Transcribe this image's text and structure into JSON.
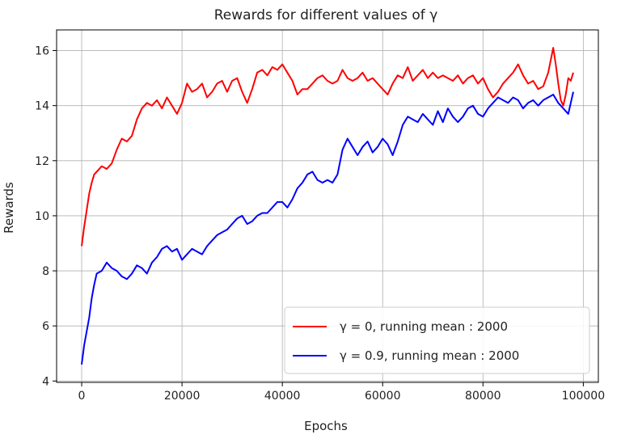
{
  "chart_data": {
    "type": "line",
    "title": "Rewards for different values of γ",
    "xlabel": "Epochs",
    "ylabel": "Rewards",
    "xlim": [
      -5000,
      103000
    ],
    "ylim": [
      3.95,
      16.75
    ],
    "xticks": [
      0,
      20000,
      40000,
      60000,
      80000,
      100000
    ],
    "yticks": [
      4,
      6,
      8,
      10,
      12,
      14,
      16
    ],
    "grid": true,
    "legend_position": "lower-right",
    "series": [
      {
        "name": "γ = 0, running mean : 2000",
        "color": "#ff0000",
        "points": [
          [
            0,
            8.9
          ],
          [
            500,
            9.6
          ],
          [
            1000,
            10.2
          ],
          [
            1500,
            10.8
          ],
          [
            2000,
            11.2
          ],
          [
            2500,
            11.5
          ],
          [
            3000,
            11.6
          ],
          [
            4000,
            11.8
          ],
          [
            5000,
            11.7
          ],
          [
            6000,
            11.9
          ],
          [
            7000,
            12.4
          ],
          [
            8000,
            12.8
          ],
          [
            9000,
            12.7
          ],
          [
            10000,
            12.9
          ],
          [
            11000,
            13.5
          ],
          [
            12000,
            13.9
          ],
          [
            13000,
            14.1
          ],
          [
            14000,
            14.0
          ],
          [
            15000,
            14.2
          ],
          [
            16000,
            13.9
          ],
          [
            17000,
            14.3
          ],
          [
            18000,
            14.0
          ],
          [
            19000,
            13.7
          ],
          [
            20000,
            14.1
          ],
          [
            21000,
            14.8
          ],
          [
            22000,
            14.5
          ],
          [
            23000,
            14.6
          ],
          [
            24000,
            14.8
          ],
          [
            25000,
            14.3
          ],
          [
            26000,
            14.5
          ],
          [
            27000,
            14.8
          ],
          [
            28000,
            14.9
          ],
          [
            29000,
            14.5
          ],
          [
            30000,
            14.9
          ],
          [
            31000,
            15.0
          ],
          [
            32000,
            14.5
          ],
          [
            33000,
            14.1
          ],
          [
            34000,
            14.6
          ],
          [
            35000,
            15.2
          ],
          [
            36000,
            15.3
          ],
          [
            37000,
            15.1
          ],
          [
            38000,
            15.4
          ],
          [
            39000,
            15.3
          ],
          [
            40000,
            15.5
          ],
          [
            41000,
            15.2
          ],
          [
            42000,
            14.9
          ],
          [
            43000,
            14.4
          ],
          [
            44000,
            14.6
          ],
          [
            45000,
            14.6
          ],
          [
            46000,
            14.8
          ],
          [
            47000,
            15.0
          ],
          [
            48000,
            15.1
          ],
          [
            49000,
            14.9
          ],
          [
            50000,
            14.8
          ],
          [
            51000,
            14.9
          ],
          [
            52000,
            15.3
          ],
          [
            53000,
            15.0
          ],
          [
            54000,
            14.9
          ],
          [
            55000,
            15.0
          ],
          [
            56000,
            15.2
          ],
          [
            57000,
            14.9
          ],
          [
            58000,
            15.0
          ],
          [
            59000,
            14.8
          ],
          [
            60000,
            14.6
          ],
          [
            61000,
            14.4
          ],
          [
            62000,
            14.8
          ],
          [
            63000,
            15.1
          ],
          [
            64000,
            15.0
          ],
          [
            65000,
            15.4
          ],
          [
            66000,
            14.9
          ],
          [
            67000,
            15.1
          ],
          [
            68000,
            15.3
          ],
          [
            69000,
            15.0
          ],
          [
            70000,
            15.2
          ],
          [
            71000,
            15.0
          ],
          [
            72000,
            15.1
          ],
          [
            73000,
            15.0
          ],
          [
            74000,
            14.9
          ],
          [
            75000,
            15.1
          ],
          [
            76000,
            14.8
          ],
          [
            77000,
            15.0
          ],
          [
            78000,
            15.1
          ],
          [
            79000,
            14.8
          ],
          [
            80000,
            15.0
          ],
          [
            81000,
            14.6
          ],
          [
            82000,
            14.3
          ],
          [
            83000,
            14.5
          ],
          [
            84000,
            14.8
          ],
          [
            85000,
            15.0
          ],
          [
            86000,
            15.2
          ],
          [
            87000,
            15.5
          ],
          [
            88000,
            15.1
          ],
          [
            89000,
            14.8
          ],
          [
            90000,
            14.9
          ],
          [
            91000,
            14.6
          ],
          [
            92000,
            14.7
          ],
          [
            93000,
            15.2
          ],
          [
            94000,
            16.1
          ],
          [
            94500,
            15.5
          ],
          [
            95000,
            14.8
          ],
          [
            95500,
            14.2
          ],
          [
            96000,
            14.0
          ],
          [
            96500,
            14.4
          ],
          [
            97000,
            15.0
          ],
          [
            97500,
            14.9
          ],
          [
            98000,
            15.2
          ]
        ]
      },
      {
        "name": "γ = 0.9, running mean : 2000",
        "color": "#0000ff",
        "points": [
          [
            0,
            4.6
          ],
          [
            500,
            5.3
          ],
          [
            1000,
            5.8
          ],
          [
            1500,
            6.3
          ],
          [
            2000,
            7.0
          ],
          [
            2500,
            7.5
          ],
          [
            3000,
            7.9
          ],
          [
            4000,
            8.0
          ],
          [
            5000,
            8.3
          ],
          [
            6000,
            8.1
          ],
          [
            7000,
            8.0
          ],
          [
            8000,
            7.8
          ],
          [
            9000,
            7.7
          ],
          [
            10000,
            7.9
          ],
          [
            11000,
            8.2
          ],
          [
            12000,
            8.1
          ],
          [
            13000,
            7.9
          ],
          [
            14000,
            8.3
          ],
          [
            15000,
            8.5
          ],
          [
            16000,
            8.8
          ],
          [
            17000,
            8.9
          ],
          [
            18000,
            8.7
          ],
          [
            19000,
            8.8
          ],
          [
            20000,
            8.4
          ],
          [
            21000,
            8.6
          ],
          [
            22000,
            8.8
          ],
          [
            23000,
            8.7
          ],
          [
            24000,
            8.6
          ],
          [
            25000,
            8.9
          ],
          [
            26000,
            9.1
          ],
          [
            27000,
            9.3
          ],
          [
            28000,
            9.4
          ],
          [
            29000,
            9.5
          ],
          [
            30000,
            9.7
          ],
          [
            31000,
            9.9
          ],
          [
            32000,
            10.0
          ],
          [
            33000,
            9.7
          ],
          [
            34000,
            9.8
          ],
          [
            35000,
            10.0
          ],
          [
            36000,
            10.1
          ],
          [
            37000,
            10.1
          ],
          [
            38000,
            10.3
          ],
          [
            39000,
            10.5
          ],
          [
            40000,
            10.5
          ],
          [
            41000,
            10.3
          ],
          [
            42000,
            10.6
          ],
          [
            43000,
            11.0
          ],
          [
            44000,
            11.2
          ],
          [
            45000,
            11.5
          ],
          [
            46000,
            11.6
          ],
          [
            47000,
            11.3
          ],
          [
            48000,
            11.2
          ],
          [
            49000,
            11.3
          ],
          [
            50000,
            11.2
          ],
          [
            51000,
            11.5
          ],
          [
            52000,
            12.4
          ],
          [
            53000,
            12.8
          ],
          [
            54000,
            12.5
          ],
          [
            55000,
            12.2
          ],
          [
            56000,
            12.5
          ],
          [
            57000,
            12.7
          ],
          [
            58000,
            12.3
          ],
          [
            59000,
            12.5
          ],
          [
            60000,
            12.8
          ],
          [
            61000,
            12.6
          ],
          [
            62000,
            12.2
          ],
          [
            63000,
            12.7
          ],
          [
            64000,
            13.3
          ],
          [
            65000,
            13.6
          ],
          [
            66000,
            13.5
          ],
          [
            67000,
            13.4
          ],
          [
            68000,
            13.7
          ],
          [
            69000,
            13.5
          ],
          [
            70000,
            13.3
          ],
          [
            71000,
            13.8
          ],
          [
            72000,
            13.4
          ],
          [
            73000,
            13.9
          ],
          [
            74000,
            13.6
          ],
          [
            75000,
            13.4
          ],
          [
            76000,
            13.6
          ],
          [
            77000,
            13.9
          ],
          [
            78000,
            14.0
          ],
          [
            79000,
            13.7
          ],
          [
            80000,
            13.6
          ],
          [
            81000,
            13.9
          ],
          [
            82000,
            14.1
          ],
          [
            83000,
            14.3
          ],
          [
            84000,
            14.2
          ],
          [
            85000,
            14.1
          ],
          [
            86000,
            14.3
          ],
          [
            87000,
            14.2
          ],
          [
            88000,
            13.9
          ],
          [
            89000,
            14.1
          ],
          [
            90000,
            14.2
          ],
          [
            91000,
            14.0
          ],
          [
            92000,
            14.2
          ],
          [
            93000,
            14.3
          ],
          [
            94000,
            14.4
          ],
          [
            95000,
            14.1
          ],
          [
            96000,
            13.9
          ],
          [
            97000,
            13.7
          ],
          [
            98000,
            14.5
          ]
        ]
      }
    ]
  }
}
